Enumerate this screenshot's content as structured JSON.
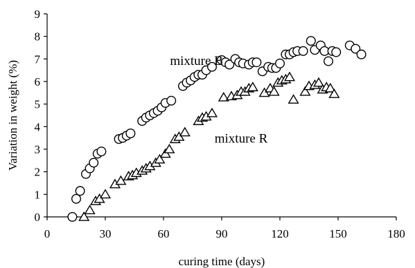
{
  "chart_data": {
    "type": "scatter",
    "title": "",
    "xlabel": "curing time (days)",
    "ylabel": "Variation in weight (%)",
    "xlim": [
      0,
      180
    ],
    "ylim": [
      0,
      9
    ],
    "xticks": [
      0,
      30,
      60,
      90,
      120,
      150,
      180
    ],
    "yticks": [
      0,
      1,
      2,
      3,
      4,
      5,
      6,
      7,
      8,
      9
    ],
    "grid": false,
    "legend": "none",
    "series": [
      {
        "name": "mixture B",
        "marker": "circle",
        "color": "#000000",
        "points": [
          [
            13,
            0.0
          ],
          [
            15,
            0.8
          ],
          [
            17,
            1.15
          ],
          [
            20,
            1.9
          ],
          [
            22,
            2.15
          ],
          [
            24,
            2.4
          ],
          [
            26,
            2.8
          ],
          [
            28,
            2.9
          ],
          [
            37,
            3.45
          ],
          [
            39,
            3.5
          ],
          [
            41,
            3.6
          ],
          [
            43,
            3.7
          ],
          [
            49,
            4.25
          ],
          [
            51,
            4.4
          ],
          [
            53,
            4.5
          ],
          [
            55,
            4.6
          ],
          [
            57,
            4.7
          ],
          [
            59,
            4.85
          ],
          [
            61,
            5.05
          ],
          [
            64,
            5.15
          ],
          [
            70,
            5.8
          ],
          [
            72,
            5.95
          ],
          [
            74,
            6.05
          ],
          [
            76,
            6.2
          ],
          [
            78,
            6.3
          ],
          [
            80,
            6.3
          ],
          [
            82,
            6.5
          ],
          [
            85,
            6.65
          ],
          [
            90,
            6.95
          ],
          [
            92,
            6.85
          ],
          [
            94,
            6.75
          ],
          [
            97,
            7.0
          ],
          [
            99,
            6.85
          ],
          [
            101,
            6.8
          ],
          [
            104,
            6.75
          ],
          [
            106,
            6.85
          ],
          [
            108,
            6.85
          ],
          [
            111,
            6.45
          ],
          [
            114,
            6.65
          ],
          [
            116,
            6.6
          ],
          [
            118,
            6.6
          ],
          [
            120,
            6.8
          ],
          [
            123,
            7.2
          ],
          [
            125,
            7.2
          ],
          [
            127,
            7.3
          ],
          [
            129,
            7.35
          ],
          [
            132,
            7.35
          ],
          [
            136,
            7.8
          ],
          [
            138,
            7.4
          ],
          [
            141,
            7.6
          ],
          [
            143,
            7.35
          ],
          [
            145,
            6.9
          ],
          [
            147,
            7.35
          ],
          [
            149,
            7.3
          ],
          [
            156,
            7.6
          ],
          [
            159,
            7.45
          ],
          [
            162,
            7.2
          ]
        ]
      },
      {
        "name": "mixture R",
        "marker": "triangle",
        "color": "#000000",
        "points": [
          [
            19,
            0.0
          ],
          [
            22,
            0.3
          ],
          [
            25,
            0.7
          ],
          [
            27,
            0.8
          ],
          [
            30,
            1.0
          ],
          [
            35,
            1.45
          ],
          [
            38,
            1.6
          ],
          [
            42,
            1.8
          ],
          [
            44,
            1.85
          ],
          [
            46,
            1.95
          ],
          [
            49,
            2.05
          ],
          [
            51,
            2.15
          ],
          [
            53,
            2.25
          ],
          [
            56,
            2.4
          ],
          [
            58,
            2.55
          ],
          [
            61,
            2.8
          ],
          [
            63,
            3.0
          ],
          [
            66,
            3.45
          ],
          [
            68,
            3.55
          ],
          [
            71,
            3.75
          ],
          [
            78,
            4.25
          ],
          [
            80,
            4.4
          ],
          [
            82,
            4.45
          ],
          [
            85,
            4.6
          ],
          [
            91,
            5.3
          ],
          [
            95,
            5.35
          ],
          [
            98,
            5.4
          ],
          [
            100,
            5.55
          ],
          [
            102,
            5.55
          ],
          [
            104,
            5.7
          ],
          [
            106,
            5.75
          ],
          [
            112,
            5.5
          ],
          [
            115,
            5.7
          ],
          [
            117,
            5.55
          ],
          [
            119,
            5.95
          ],
          [
            121,
            6.05
          ],
          [
            123,
            6.1
          ],
          [
            125,
            6.2
          ],
          [
            127,
            5.2
          ],
          [
            133,
            5.55
          ],
          [
            135,
            5.8
          ],
          [
            138,
            5.85
          ],
          [
            140,
            5.95
          ],
          [
            142,
            5.65
          ],
          [
            144,
            5.75
          ],
          [
            146,
            5.7
          ],
          [
            148,
            5.45
          ]
        ]
      }
    ],
    "annotations": [
      {
        "text": "mixture B",
        "x": 77,
        "y": 6.95
      },
      {
        "text": "mixture R",
        "x": 100,
        "y": 3.5
      }
    ]
  }
}
